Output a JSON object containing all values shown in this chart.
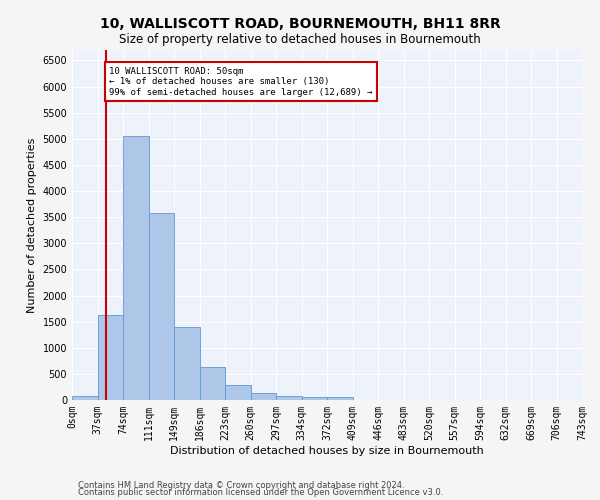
{
  "title": "10, WALLISCOTT ROAD, BOURNEMOUTH, BH11 8RR",
  "subtitle": "Size of property relative to detached houses in Bournemouth",
  "xlabel": "Distribution of detached houses by size in Bournemouth",
  "ylabel": "Number of detached properties",
  "footnote1": "Contains HM Land Registry data © Crown copyright and database right 2024.",
  "footnote2": "Contains public sector information licensed under the Open Government Licence v3.0.",
  "bar_values": [
    75,
    1625,
    5050,
    3575,
    1400,
    625,
    290,
    140,
    80,
    65,
    65,
    0,
    0,
    0,
    0,
    0,
    0,
    0,
    0,
    0
  ],
  "x_labels": [
    "0sqm",
    "37sqm",
    "74sqm",
    "111sqm",
    "149sqm",
    "186sqm",
    "223sqm",
    "260sqm",
    "297sqm",
    "334sqm",
    "372sqm",
    "409sqm",
    "446sqm",
    "483sqm",
    "520sqm",
    "557sqm",
    "594sqm",
    "632sqm",
    "669sqm",
    "706sqm",
    "743sqm"
  ],
  "bar_color": "#aec6e8",
  "bar_edge_color": "#5b9bd5",
  "vline_color": "#cc0000",
  "annotation_text": "10 WALLISCOTT ROAD: 50sqm\n← 1% of detached houses are smaller (130)\n99% of semi-detached houses are larger (12,689) →",
  "annotation_box_color": "#ffffff",
  "annotation_box_edge_color": "#cc0000",
  "ylim": [
    0,
    6700
  ],
  "background_color": "#eef2fb",
  "grid_color": "#ffffff",
  "fig_background": "#f5f5f5",
  "title_fontsize": 10,
  "subtitle_fontsize": 8.5,
  "axis_label_fontsize": 8,
  "tick_fontsize": 7,
  "annotation_fontsize": 6.5,
  "footnote_fontsize": 6,
  "vline_x": 1.35
}
